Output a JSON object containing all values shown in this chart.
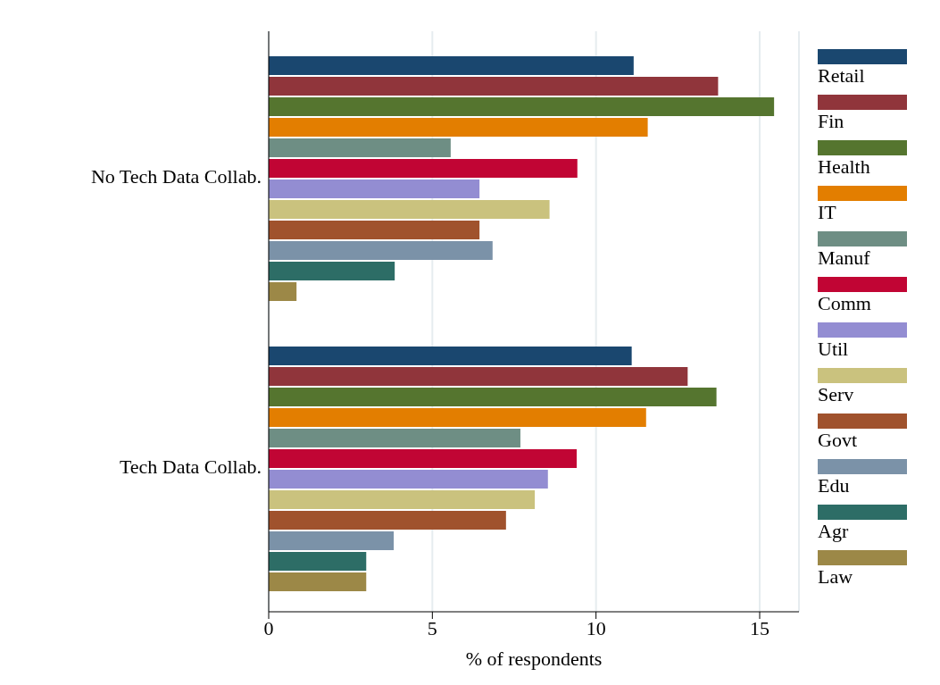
{
  "chart_data": {
    "type": "bar",
    "orientation": "horizontal",
    "xlabel": "% of respondents",
    "categories": [
      "No Tech Data Collab.",
      "Tech Data Collab."
    ],
    "xlim": [
      0,
      16.2
    ],
    "xticks": [
      0,
      5,
      10,
      15
    ],
    "grid": "x",
    "legend": "right",
    "series": [
      {
        "name": "Retail",
        "color": "#1a476f",
        "values": [
          11.15,
          11.09
        ]
      },
      {
        "name": "Fin",
        "color": "#90353b",
        "values": [
          13.73,
          12.8
        ]
      },
      {
        "name": "Health",
        "color": "#55752f",
        "values": [
          15.44,
          13.68
        ]
      },
      {
        "name": "IT",
        "color": "#e37e00",
        "values": [
          11.58,
          11.53
        ]
      },
      {
        "name": "Manuf",
        "color": "#6e8e84",
        "values": [
          5.56,
          7.69
        ]
      },
      {
        "name": "Comm",
        "color": "#c10534",
        "values": [
          9.43,
          9.41
        ]
      },
      {
        "name": "Util",
        "color": "#938dd2",
        "values": [
          6.44,
          8.53
        ]
      },
      {
        "name": "Serv",
        "color": "#cac27e",
        "values": [
          8.58,
          8.13
        ]
      },
      {
        "name": "Govt",
        "color": "#a0522d",
        "values": [
          6.44,
          7.25
        ]
      },
      {
        "name": "Edu",
        "color": "#7b92a8",
        "values": [
          6.84,
          3.82
        ]
      },
      {
        "name": "Agr",
        "color": "#2d6d66",
        "values": [
          3.85,
          2.98
        ]
      },
      {
        "name": "Law",
        "color": "#9c8847",
        "values": [
          0.85,
          2.98
        ]
      }
    ]
  }
}
